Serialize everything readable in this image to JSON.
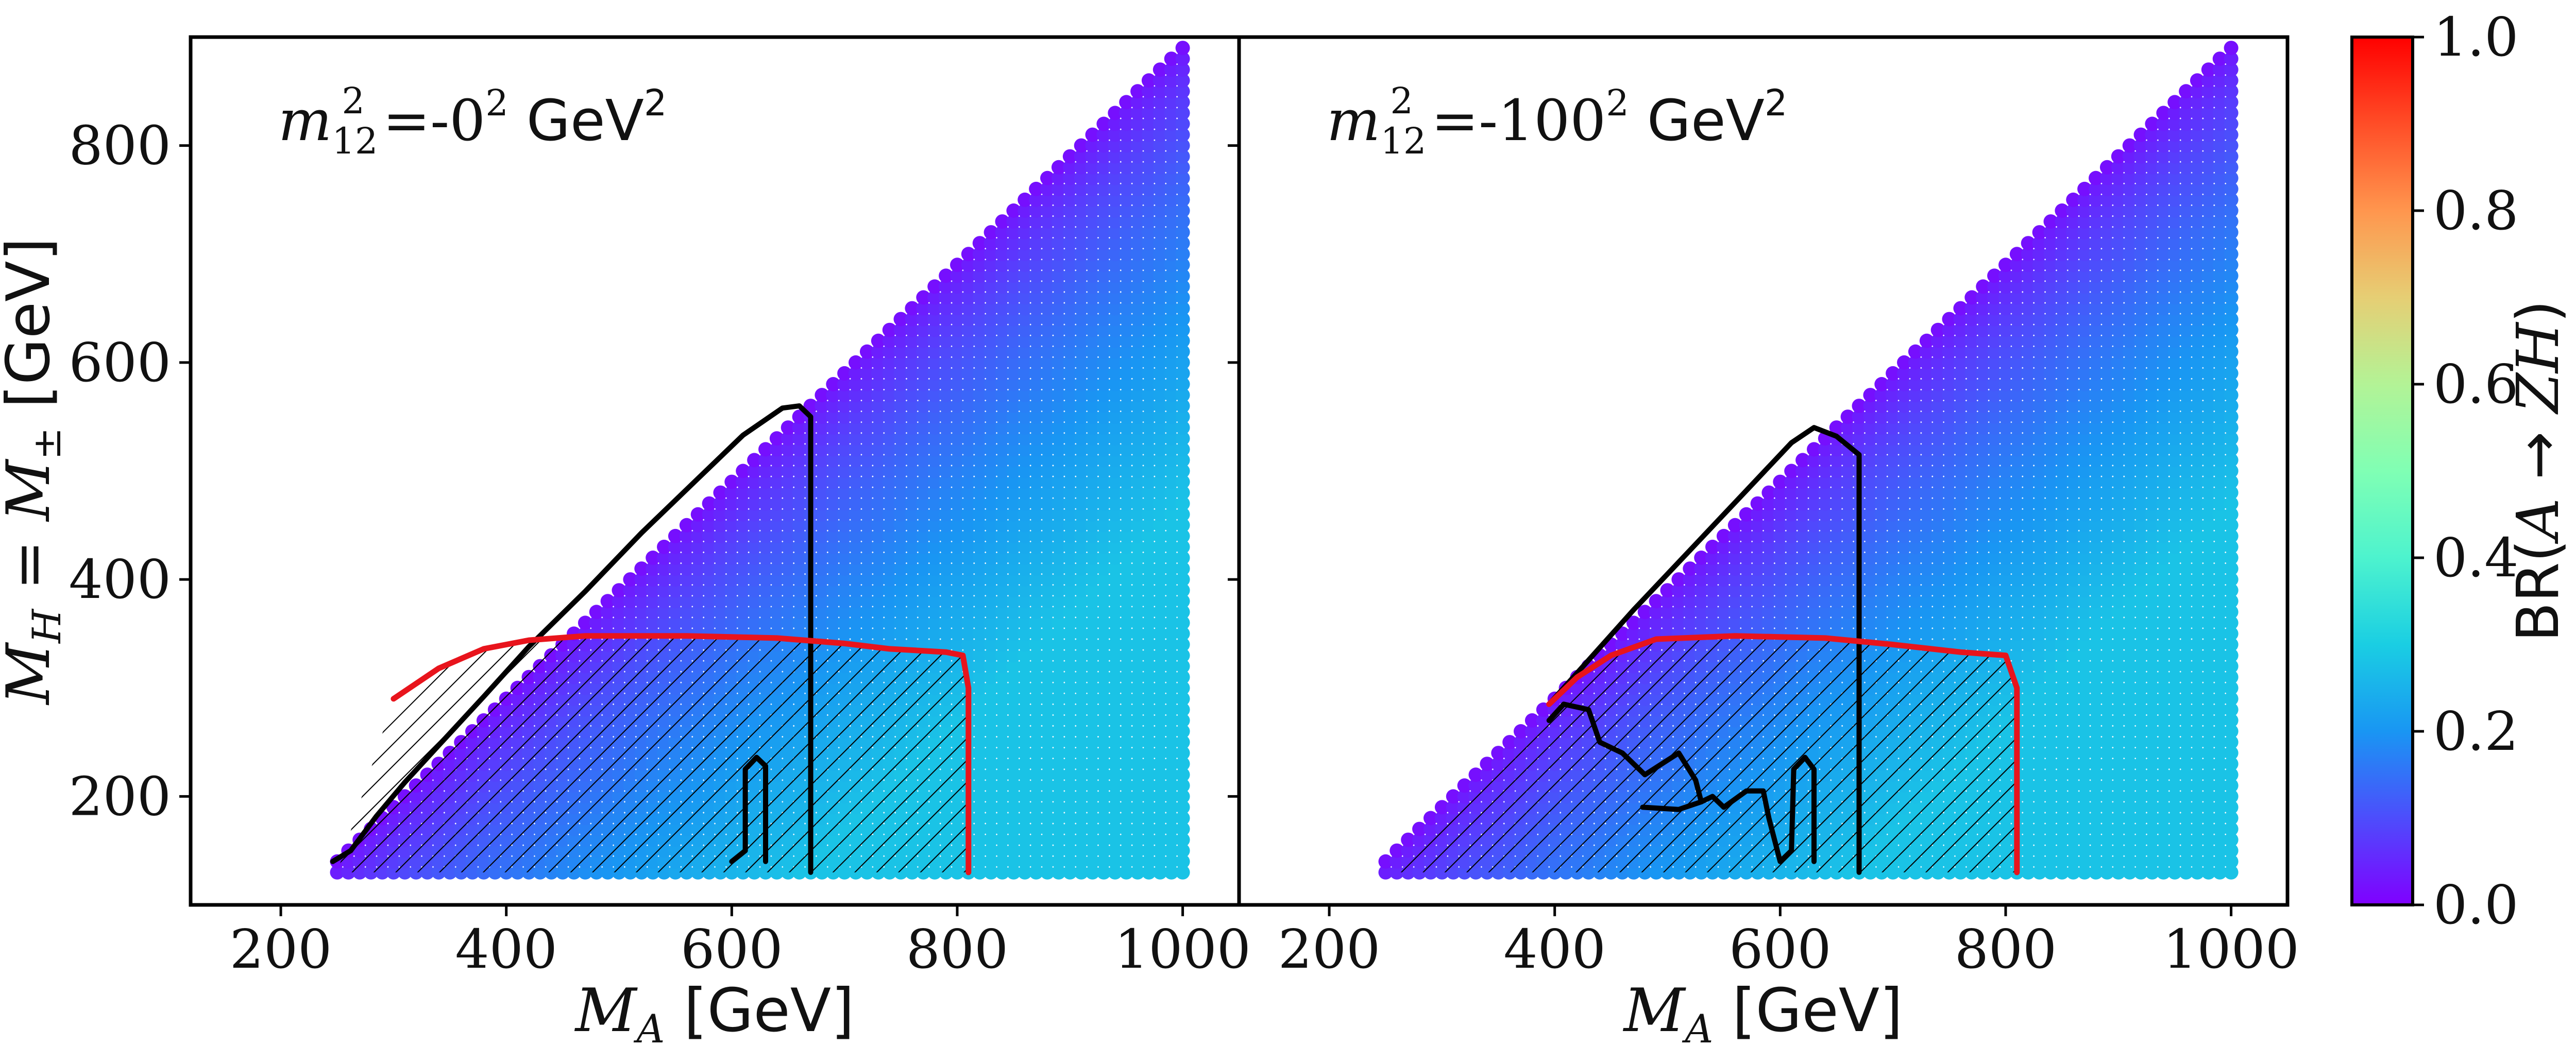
{
  "chart_data": [
    {
      "type": "scatter",
      "panel": "left",
      "annotation": {
        "sym": "m",
        "sub": "12",
        "sup": "2",
        "eq": " =-0",
        "eq_sup": "2",
        "unit": " GeV",
        "unit_sup": "2"
      },
      "xlabel": {
        "sym": "M",
        "sub": "A",
        "unit": " [GeV]"
      },
      "ylabel": {
        "sym1": "M",
        "sub1": "H",
        "eq": " = ",
        "sym2": "M",
        "sub2": "±",
        "unit": " [GeV]"
      },
      "xlim": [
        120,
        1050
      ],
      "ylim": [
        100,
        900
      ],
      "xticks": [
        200,
        400,
        600,
        800,
        1000
      ],
      "yticks": [
        200,
        400,
        600,
        800
      ],
      "grid": false,
      "scatter_domain": {
        "x_min": 250,
        "x_max": 1000,
        "y_min": 130,
        "y_max": 890,
        "constraint": "M_H <= M_A - 110"
      },
      "hatched_region": {
        "x_min": 250,
        "x_max": 810,
        "y_max": 350
      },
      "red_contour": [
        [
          300,
          290
        ],
        [
          340,
          318
        ],
        [
          380,
          336
        ],
        [
          420,
          344
        ],
        [
          470,
          348
        ],
        [
          560,
          348
        ],
        [
          640,
          346
        ],
        [
          700,
          341
        ],
        [
          740,
          336
        ],
        [
          790,
          333
        ],
        [
          805,
          330
        ],
        [
          810,
          300
        ],
        [
          810,
          130
        ]
      ],
      "black_contours": [
        [
          [
            246,
            140
          ],
          [
            262,
            150
          ],
          [
            285,
            182
          ],
          [
            310,
            213
          ],
          [
            340,
            247
          ],
          [
            380,
            292
          ],
          [
            420,
            338
          ],
          [
            470,
            389
          ],
          [
            520,
            443
          ],
          [
            570,
            493
          ],
          [
            610,
            533
          ],
          [
            645,
            558
          ],
          [
            660,
            560
          ],
          [
            670,
            550
          ],
          [
            670,
            130
          ]
        ],
        [
          [
            600,
            140
          ],
          [
            612,
            150
          ],
          [
            612,
            225
          ],
          [
            622,
            236
          ],
          [
            630,
            228
          ],
          [
            630,
            140
          ]
        ]
      ]
    },
    {
      "type": "scatter",
      "panel": "right",
      "annotation": {
        "sym": "m",
        "sub": "12",
        "sup": "2",
        "eq": " =-100",
        "eq_sup": "2",
        "unit": " GeV",
        "unit_sup": "2"
      },
      "xlabel": {
        "sym": "M",
        "sub": "A",
        "unit": " [GeV]"
      },
      "xlim": [
        120,
        1050
      ],
      "ylim": [
        100,
        900
      ],
      "xticks": [
        200,
        400,
        600,
        800,
        1000
      ],
      "yticks": [
        200,
        400,
        600,
        800
      ],
      "grid": false,
      "scatter_domain": {
        "x_min": 250,
        "x_max": 1000,
        "y_min": 130,
        "y_max": 890,
        "constraint": "M_H <= M_A - 110"
      },
      "hatched_region": {
        "x_min": 250,
        "x_max": 810,
        "y_max": 350
      },
      "red_contour": [
        [
          395,
          285
        ],
        [
          420,
          310
        ],
        [
          450,
          330
        ],
        [
          490,
          345
        ],
        [
          560,
          348
        ],
        [
          640,
          346
        ],
        [
          700,
          340
        ],
        [
          760,
          333
        ],
        [
          800,
          330
        ],
        [
          810,
          300
        ],
        [
          810,
          130
        ]
      ],
      "black_contours": [
        [
          [
            395,
            285
          ],
          [
            420,
            314
          ],
          [
            470,
            372
          ],
          [
            520,
            427
          ],
          [
            570,
            482
          ],
          [
            610,
            526
          ],
          [
            630,
            540
          ],
          [
            650,
            532
          ],
          [
            670,
            515
          ],
          [
            670,
            130
          ]
        ],
        [
          [
            395,
            270
          ],
          [
            408,
            285
          ],
          [
            430,
            280
          ],
          [
            440,
            250
          ],
          [
            460,
            240
          ],
          [
            480,
            220
          ],
          [
            510,
            240
          ],
          [
            525,
            215
          ],
          [
            530,
            195
          ],
          [
            540,
            200
          ],
          [
            550,
            190
          ],
          [
            570,
            205
          ],
          [
            585,
            205
          ],
          [
            590,
            180
          ],
          [
            600,
            140
          ],
          [
            610,
            150
          ],
          [
            612,
            225
          ],
          [
            622,
            236
          ],
          [
            630,
            225
          ],
          [
            630,
            140
          ]
        ],
        [
          [
            478,
            190
          ],
          [
            510,
            188
          ],
          [
            530,
            195
          ]
        ]
      ]
    }
  ],
  "colorbar": {
    "range": [
      0,
      1
    ],
    "ticks": [
      "0.0",
      "0.2",
      "0.4",
      "0.6",
      "0.8",
      "1.0"
    ],
    "colormap": "rainbow",
    "label": {
      "pre": "BR(",
      "sym1": "A",
      "arrow": " → ",
      "sym2": "ZH",
      "post": ")"
    }
  }
}
